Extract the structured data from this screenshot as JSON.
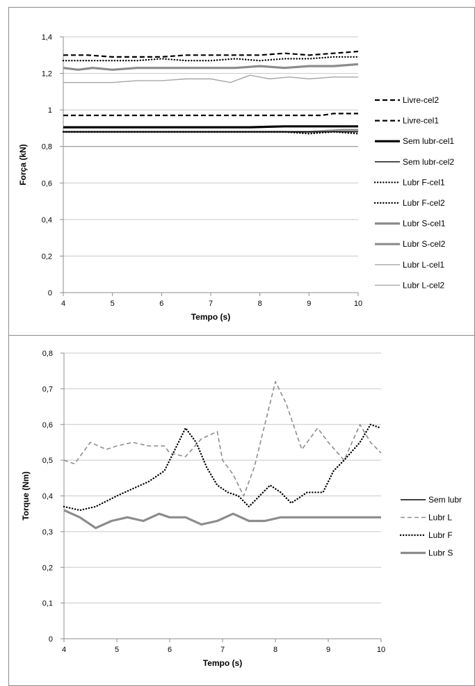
{
  "chart_data": [
    {
      "type": "line",
      "xlabel": "Tempo (s)",
      "ylabel": "Força (kN)",
      "xlim": [
        4,
        10
      ],
      "ylim": [
        0,
        1.4
      ],
      "x_ticks": [
        "4",
        "5",
        "6",
        "7",
        "8",
        "9",
        "10"
      ],
      "y_ticks": [
        "0",
        "0,2",
        "0,4",
        "0,6",
        "0,8",
        "1",
        "1,2",
        "1,4"
      ],
      "grid": "horizontal",
      "legend": "right",
      "series": [
        {
          "name": "Livre-cel2",
          "color": "#000000",
          "style": "dashed-thick",
          "x": [
            4,
            4.5,
            5,
            5.5,
            6,
            6.5,
            7,
            7.5,
            8,
            8.5,
            9,
            9.5,
            10
          ],
          "y": [
            1.3,
            1.3,
            1.29,
            1.29,
            1.29,
            1.3,
            1.3,
            1.3,
            1.3,
            1.31,
            1.3,
            1.31,
            1.32
          ]
        },
        {
          "name": "Livre-cel1",
          "color": "#000000",
          "style": "dashed-thick",
          "x": [
            4,
            4.5,
            5,
            5.5,
            6,
            6.5,
            7,
            7.5,
            8,
            8.5,
            9,
            9.25,
            9.5,
            10
          ],
          "y": [
            0.97,
            0.97,
            0.97,
            0.97,
            0.97,
            0.97,
            0.97,
            0.97,
            0.97,
            0.97,
            0.97,
            0.97,
            0.98,
            0.98
          ]
        },
        {
          "name": "Sem lubr-cel1",
          "color": "#000000",
          "style": "solid-thick",
          "x": [
            4,
            5,
            6,
            7,
            7.8,
            8.5,
            9,
            10
          ],
          "y": [
            0.905,
            0.905,
            0.905,
            0.905,
            0.905,
            0.91,
            0.91,
            0.91
          ]
        },
        {
          "name": "Sem lubr-cel2",
          "color": "#000000",
          "style": "solid-thin",
          "x": [
            4,
            5,
            6,
            7,
            8,
            9,
            10
          ],
          "y": [
            0.88,
            0.88,
            0.88,
            0.88,
            0.88,
            0.88,
            0.88
          ]
        },
        {
          "name": "Lubr F-cel1",
          "color": "#000000",
          "style": "dotted-thick",
          "x": [
            4,
            4.5,
            5,
            5.5,
            6,
            6.5,
            7,
            7.5,
            8,
            8.5,
            9,
            9.5,
            10
          ],
          "y": [
            1.27,
            1.27,
            1.27,
            1.27,
            1.28,
            1.27,
            1.27,
            1.28,
            1.27,
            1.28,
            1.28,
            1.29,
            1.29
          ]
        },
        {
          "name": "Lubr F-cel2",
          "color": "#000000",
          "style": "dotted-thick",
          "x": [
            4,
            4.5,
            5,
            5.5,
            6,
            6.5,
            7,
            7.5,
            8,
            8.5,
            9,
            9.5,
            10
          ],
          "y": [
            0.88,
            0.88,
            0.88,
            0.88,
            0.88,
            0.88,
            0.88,
            0.88,
            0.88,
            0.88,
            0.87,
            0.88,
            0.87
          ]
        },
        {
          "name": "Lubr S-cel1",
          "color": "#8c8c8c",
          "style": "solid-thick",
          "x": [
            4,
            4.3,
            4.6,
            5,
            5.5,
            6,
            6.5,
            7,
            7.5,
            8,
            8.5,
            9,
            9.5,
            10
          ],
          "y": [
            1.23,
            1.22,
            1.23,
            1.22,
            1.23,
            1.23,
            1.23,
            1.23,
            1.23,
            1.24,
            1.23,
            1.24,
            1.24,
            1.25
          ]
        },
        {
          "name": "Lubr S-cel2",
          "color": "#8c8c8c",
          "style": "solid-thick",
          "x": [
            4,
            5,
            6,
            7,
            8,
            9,
            9.7,
            10
          ],
          "y": [
            0.88,
            0.88,
            0.88,
            0.88,
            0.88,
            0.88,
            0.89,
            0.89
          ]
        },
        {
          "name": "Lubr L-cel1",
          "color": "#a6a6a6",
          "style": "solid-thin",
          "x": [
            4,
            4.5,
            5,
            5.5,
            6,
            6.5,
            7,
            7.4,
            7.8,
            8.2,
            8.6,
            9,
            9.5,
            10
          ],
          "y": [
            1.15,
            1.15,
            1.15,
            1.16,
            1.16,
            1.17,
            1.17,
            1.15,
            1.19,
            1.17,
            1.18,
            1.17,
            1.18,
            1.18
          ]
        },
        {
          "name": "Lubr L-cel2",
          "color": "#a6a6a6",
          "style": "solid-thin",
          "x": [
            4,
            5,
            6,
            7,
            8,
            9,
            10
          ],
          "y": [
            0.8,
            0.8,
            0.8,
            0.8,
            0.8,
            0.8,
            0.8
          ]
        }
      ]
    },
    {
      "type": "line",
      "xlabel": "Tempo (s)",
      "ylabel": "Torque (Nm)",
      "xlim": [
        4,
        10
      ],
      "ylim": [
        0,
        0.8
      ],
      "x_ticks": [
        "4",
        "5",
        "6",
        "7",
        "8",
        "9",
        "10"
      ],
      "y_ticks": [
        "0",
        "0,1",
        "0,2",
        "0,3",
        "0,4",
        "0,5",
        "0,6",
        "0,7",
        "0,8"
      ],
      "grid": "horizontal",
      "legend": "right",
      "series": [
        {
          "name": "Sem lubr",
          "color": "#000000",
          "style": "solid-thin",
          "x": [],
          "y": []
        },
        {
          "name": "Lubr L",
          "color": "#8c8c8c",
          "style": "dashed-thin",
          "x": [
            4,
            4.2,
            4.5,
            4.8,
            5,
            5.3,
            5.6,
            5.9,
            6,
            6.3,
            6.6,
            6.9,
            7,
            7.2,
            7.4,
            7.6,
            7.8,
            8,
            8.2,
            8.5,
            8.8,
            9,
            9.3,
            9.6,
            9.8,
            10
          ],
          "y": [
            0.5,
            0.49,
            0.55,
            0.53,
            0.54,
            0.55,
            0.54,
            0.54,
            0.52,
            0.51,
            0.56,
            0.58,
            0.5,
            0.46,
            0.4,
            0.48,
            0.6,
            0.72,
            0.66,
            0.53,
            0.59,
            0.55,
            0.5,
            0.6,
            0.55,
            0.52
          ]
        },
        {
          "name": "Lubr F",
          "color": "#000000",
          "style": "dotted-thick",
          "x": [
            4,
            4.3,
            4.6,
            5,
            5.3,
            5.6,
            5.9,
            6.1,
            6.3,
            6.5,
            6.7,
            6.9,
            7.1,
            7.3,
            7.5,
            7.7,
            7.9,
            8.1,
            8.3,
            8.6,
            8.9,
            9.1,
            9.3,
            9.6,
            9.8,
            10
          ],
          "y": [
            0.37,
            0.36,
            0.37,
            0.4,
            0.42,
            0.44,
            0.47,
            0.53,
            0.59,
            0.55,
            0.48,
            0.43,
            0.41,
            0.4,
            0.37,
            0.4,
            0.43,
            0.41,
            0.38,
            0.41,
            0.41,
            0.47,
            0.5,
            0.55,
            0.6,
            0.59
          ]
        },
        {
          "name": "Lubr S",
          "color": "#8c8c8c",
          "style": "solid-thick",
          "x": [
            4,
            4.3,
            4.6,
            4.9,
            5.2,
            5.5,
            5.8,
            6,
            6.3,
            6.6,
            6.9,
            7.2,
            7.5,
            7.8,
            8.1,
            8.4,
            8.7,
            9,
            9.3,
            9.6,
            10
          ],
          "y": [
            0.36,
            0.34,
            0.31,
            0.33,
            0.34,
            0.33,
            0.35,
            0.34,
            0.34,
            0.32,
            0.33,
            0.35,
            0.33,
            0.33,
            0.34,
            0.34,
            0.34,
            0.34,
            0.34,
            0.34,
            0.34
          ]
        }
      ]
    }
  ]
}
